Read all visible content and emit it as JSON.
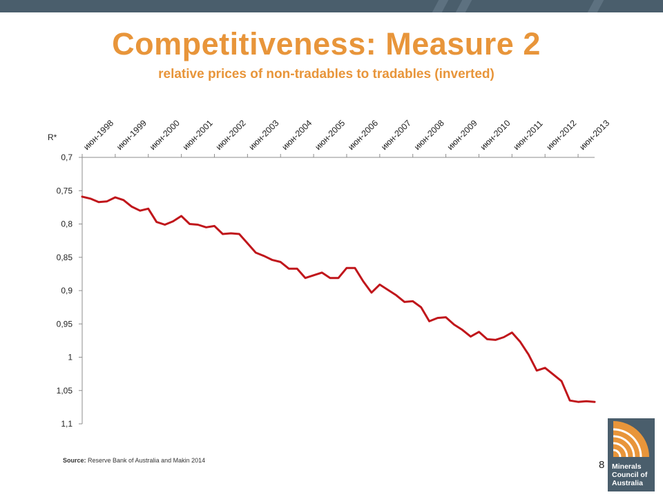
{
  "slide": {
    "title": "Competitiveness: Measure 2",
    "subtitle": "relative prices of non-tradables to tradables (inverted)",
    "source_label": "Source:",
    "source_text": " Reserve Bank of Australia and Makin 2014",
    "page_number": "8",
    "logo_lines": [
      "Minerals",
      "Council of",
      "Australia"
    ],
    "colors": {
      "title": "#e8953a",
      "top_bar": "#4a5e6c",
      "line": "#c0161b",
      "logo_orange": "#e8953a"
    }
  },
  "chart_data": {
    "type": "line",
    "title": "",
    "ylabel": "R*",
    "xlabel": "",
    "y_inverted": true,
    "ylim": [
      0.7,
      1.1
    ],
    "y_ticks": [
      0.7,
      0.75,
      0.8,
      0.85,
      0.9,
      0.95,
      1,
      1.05,
      1.1
    ],
    "y_tick_labels": [
      "0,7",
      "0,75",
      "0,8",
      "0,85",
      "0,9",
      "0,95",
      "1",
      "1,05",
      "1,1"
    ],
    "x_axis_position": "top",
    "x_tick_labels": [
      "июн-1998",
      "июн-1999",
      "июн-2000",
      "июн-2001",
      "июн-2002",
      "июн-2003",
      "июн-2004",
      "июн-2005",
      "июн-2006",
      "июн-2007",
      "июн-2008",
      "июн-2009",
      "июн-2010",
      "июн-2011",
      "июн-2012",
      "июн-2013"
    ],
    "points_per_year": 4,
    "grid": false,
    "series": [
      {
        "values": [
          0.759,
          0.762,
          0.767,
          0.766,
          0.76,
          0.764,
          0.774,
          0.78,
          0.777,
          0.797,
          0.801,
          0.796,
          0.788,
          0.8,
          0.801,
          0.805,
          0.803,
          0.815,
          0.814,
          0.815,
          0.829,
          0.843,
          0.848,
          0.854,
          0.857,
          0.867,
          0.867,
          0.881,
          0.877,
          0.873,
          0.881,
          0.881,
          0.866,
          0.866,
          0.886,
          0.903,
          0.891,
          0.899,
          0.907,
          0.917,
          0.916,
          0.925,
          0.946,
          0.941,
          0.94,
          0.951,
          0.959,
          0.969,
          0.962,
          0.973,
          0.974,
          0.97,
          0.963,
          0.977,
          0.996,
          1.02,
          1.016,
          1.026,
          1.036,
          1.065,
          1.067,
          1.066,
          1.067
        ]
      }
    ]
  }
}
